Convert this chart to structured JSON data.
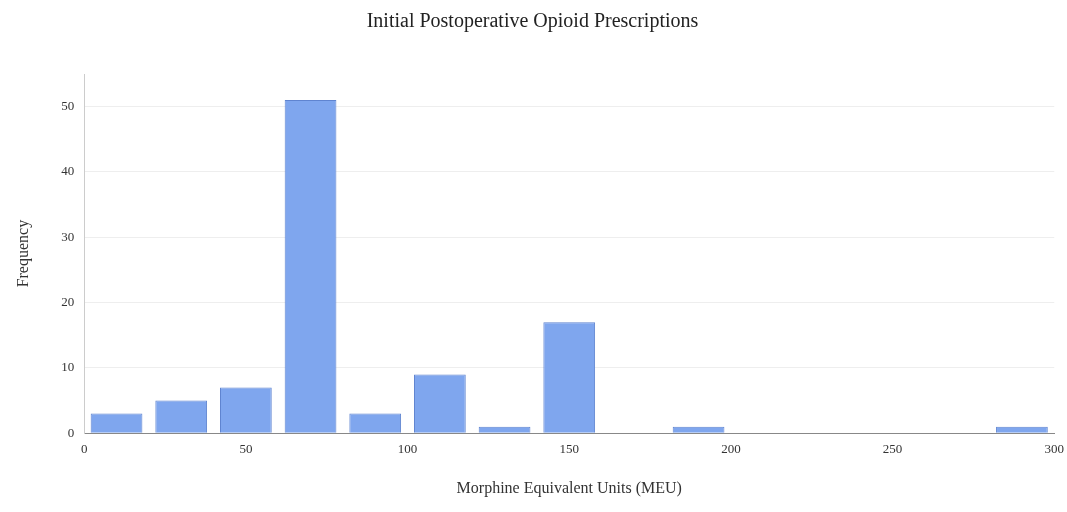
{
  "chart_data": {
    "type": "histogram",
    "title": "Initial Postoperative Opioid Prescriptions",
    "xlabel": "Morphine Equivalent Units (MEU)",
    "ylabel": "Frequency",
    "bins": [
      0,
      20,
      40,
      60,
      80,
      100,
      120,
      140,
      160,
      180,
      200,
      220,
      240,
      260,
      280,
      300
    ],
    "values": [
      3,
      5,
      7,
      51,
      3,
      9,
      1,
      17,
      0,
      1,
      0,
      0,
      0,
      0,
      1
    ],
    "color": "#7fa6ee",
    "xlim": [
      0,
      300
    ],
    "xticks": [
      0,
      50,
      100,
      150,
      200,
      250,
      300
    ],
    "ylim": [
      0,
      55
    ],
    "yticks": [
      0,
      10,
      20,
      30,
      40,
      50
    ],
    "grid": "y",
    "legend": false
  }
}
